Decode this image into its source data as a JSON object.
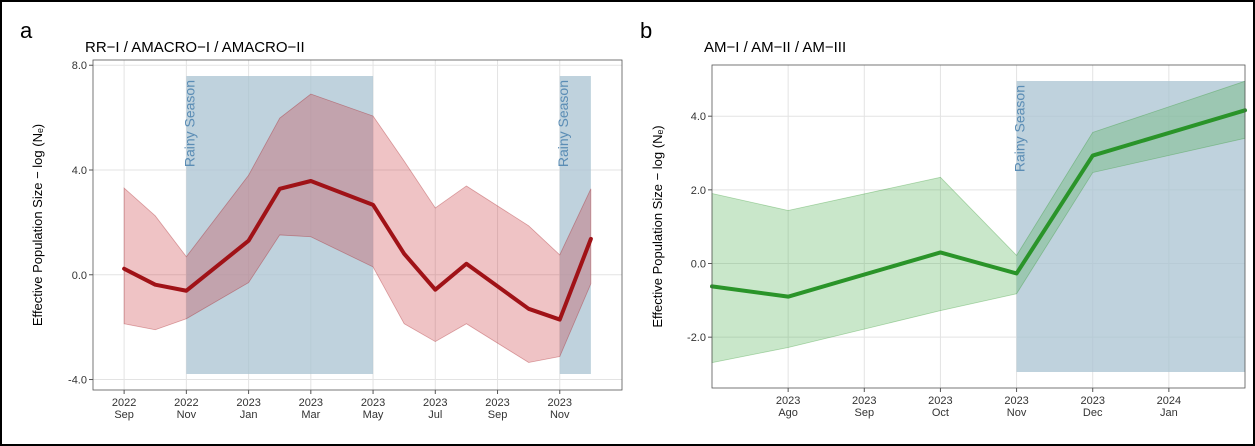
{
  "chart_data": [
    {
      "type": "line",
      "panel_label": "a",
      "title": "RR−I / AMACRO−I / AMACRO−II",
      "y_label": "Effective Population Size − log (Nₑ)",
      "x": [
        "2022-09",
        "2022-10",
        "2022-11",
        "2023-01",
        "2023-02",
        "2023-03",
        "2023-05",
        "2023-06",
        "2023-07",
        "2023-08",
        "2023-10",
        "2023-11",
        "2023-12"
      ],
      "series": [
        {
          "color": "#a01217",
          "band_color": "#c9393f",
          "values": [
            0.23,
            -0.38,
            -0.61,
            1.3,
            3.28,
            3.58,
            2.67,
            0.8,
            -0.57,
            0.42,
            -1.3,
            -1.71,
            1.37
          ],
          "upper": [
            3.31,
            2.25,
            0.69,
            3.8,
            5.98,
            6.9,
            6.06,
            4.34,
            2.55,
            3.39,
            1.87,
            0.76,
            3.28
          ],
          "lower": [
            -1.87,
            -2.1,
            -1.68,
            -0.3,
            1.52,
            1.45,
            0.3,
            -1.87,
            -2.55,
            -1.87,
            -3.35,
            -3.12,
            -0.34
          ]
        }
      ],
      "shaded_regions": [
        {
          "start": "2022-11",
          "end": "2023-05",
          "label": "Rainy Season"
        },
        {
          "start": "2023-11",
          "end": "2023-12",
          "label": "Rainy Season"
        }
      ],
      "shade_color": "#a9c3d1",
      "xlim": [
        "2022-08",
        "2024-01"
      ],
      "xticks": [
        {
          "value": "2022-09",
          "label": [
            "2022",
            "Sep"
          ]
        },
        {
          "value": "2022-11",
          "label": [
            "2022",
            "Nov"
          ]
        },
        {
          "value": "2023-01",
          "label": [
            "2023",
            "Jan"
          ]
        },
        {
          "value": "2023-03",
          "label": [
            "2023",
            "Mar"
          ]
        },
        {
          "value": "2023-05",
          "label": [
            "2023",
            "May"
          ]
        },
        {
          "value": "2023-07",
          "label": [
            "2023",
            "Jul"
          ]
        },
        {
          "value": "2023-09",
          "label": [
            "2023",
            "Sep"
          ]
        },
        {
          "value": "2023-11",
          "label": [
            "2023",
            "Nov"
          ]
        }
      ],
      "ylim": [
        -4.4,
        8.2
      ],
      "yticks": [
        {
          "value": -4,
          "label": "-4.0"
        },
        {
          "value": 0,
          "label": "0.0"
        },
        {
          "value": 4,
          "label": "4.0"
        },
        {
          "value": 8,
          "label": "8.0"
        }
      ],
      "grid": true
    },
    {
      "type": "line",
      "panel_label": "b",
      "title": "AM−I / AM−II / AM−III",
      "y_label": "Effective Population Size − log (Nₑ)",
      "x": [
        "2023-07",
        "2023-08",
        "2023-10",
        "2023-11",
        "2023-12",
        "2024-02"
      ],
      "series": [
        {
          "color": "#2a9429",
          "band_color": "#4caf50",
          "values": [
            -0.62,
            -0.9,
            0.3,
            -0.27,
            2.93,
            4.16
          ],
          "upper": [
            1.9,
            1.44,
            2.34,
            0.22,
            3.56,
            4.95
          ],
          "lower": [
            -2.69,
            -2.28,
            -1.28,
            -0.82,
            2.47,
            3.4
          ]
        }
      ],
      "shaded_regions": [
        {
          "start": "2023-11",
          "end": "2024-02",
          "label": "Rainy Season"
        }
      ],
      "shade_color": "#a9c3d1",
      "xlim": [
        "2023-07",
        "2024-02"
      ],
      "xticks": [
        {
          "value": "2023-08",
          "label": [
            "2023",
            "Ago"
          ]
        },
        {
          "value": "2023-09",
          "label": [
            "2023",
            "Sep"
          ]
        },
        {
          "value": "2023-10",
          "label": [
            "2023",
            "Oct"
          ]
        },
        {
          "value": "2023-11",
          "label": [
            "2023",
            "Nov"
          ]
        },
        {
          "value": "2023-12",
          "label": [
            "2023",
            "Dec"
          ]
        },
        {
          "value": "2024-01",
          "label": [
            "2024",
            "Jan"
          ]
        }
      ],
      "ylim": [
        -3.38,
        5.39
      ],
      "yticks": [
        {
          "value": -2,
          "label": "-2.0"
        },
        {
          "value": 0,
          "label": "0.0"
        },
        {
          "value": 2,
          "label": "2.0"
        },
        {
          "value": 4,
          "label": "4.0"
        }
      ],
      "grid": true
    }
  ]
}
